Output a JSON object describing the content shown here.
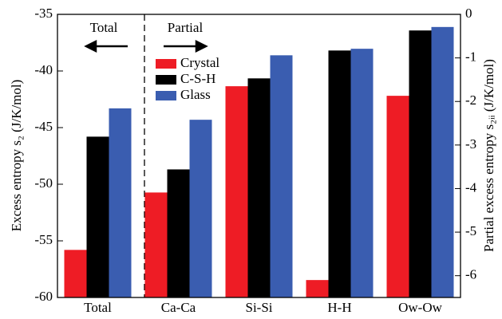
{
  "chart_data": {
    "type": "bar",
    "ylabel": "Excess entropy s₂ (J/K/mol)",
    "y2label": "Partial excess entropy s₂ᵢᵢ (J/K/mol)",
    "annotations": [
      "Total",
      "Partial"
    ],
    "categories": [
      "Total",
      "Ca-Ca",
      "Si-Si",
      "H-H",
      "Ow-Ow"
    ],
    "ylim": [
      -60,
      -35
    ],
    "yticks": [
      -60,
      -55,
      -50,
      -45,
      -40,
      -35
    ],
    "y2lim": [
      -6.5,
      0
    ],
    "y2ticks": [
      -6,
      -5,
      -4,
      -3,
      -2,
      -1,
      0
    ],
    "series": [
      {
        "name": "Crystal",
        "color": "#ee1c25",
        "axis": "y2",
        "values": [
          null,
          -4.09,
          -1.65,
          -6.1,
          -1.87
        ],
        "total_values": [
          -55.8,
          null,
          null,
          null,
          null
        ]
      },
      {
        "name": "C-S-H",
        "color": "#000000",
        "axis": "y2",
        "values": [
          null,
          -3.56,
          -1.47,
          -0.83,
          -0.37
        ],
        "total_values": [
          -45.8,
          null,
          null,
          null,
          null
        ]
      },
      {
        "name": "Glass",
        "color": "#3a5db0",
        "axis": "y2",
        "values": [
          null,
          -2.42,
          -0.94,
          -0.79,
          -0.29
        ],
        "total_values": [
          -43.3,
          null,
          null,
          null,
          null
        ]
      }
    ]
  }
}
